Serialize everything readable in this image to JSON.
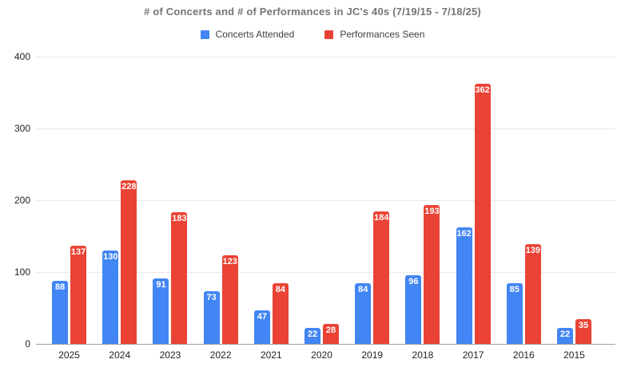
{
  "title": "# of Concerts and # of Performances in JC's 40s (7/19/15 - 7/18/25)",
  "colors": {
    "series_blue": "#4285F4",
    "series_red": "#EA4335",
    "title_text": "#757575",
    "legend_text": "#3c4043",
    "axis_text": "#222222",
    "gridline": "#e8e8e8",
    "axis_line": "#9e9e9e",
    "bar_label_text": "#ffffff"
  },
  "chart_data": {
    "type": "bar",
    "title": "# of Concerts and # of Performances in JC's 40s (7/19/15 - 7/18/25)",
    "categories": [
      "2025",
      "2024",
      "2023",
      "2022",
      "2021",
      "2020",
      "2019",
      "2018",
      "2017",
      "2016",
      "2015"
    ],
    "series": [
      {
        "name": "Concerts Attended",
        "color": "#4285F4",
        "values": [
          88,
          130,
          91,
          73,
          47,
          22,
          84,
          96,
          162,
          85,
          22
        ]
      },
      {
        "name": "Performances Seen",
        "color": "#EA4335",
        "values": [
          137,
          228,
          183,
          123,
          84,
          28,
          184,
          193,
          362,
          139,
          35
        ]
      }
    ],
    "xlabel": "",
    "ylabel": "",
    "ylim": [
      0,
      400
    ],
    "yticks": [
      0,
      100,
      200,
      300,
      400
    ],
    "grid": true,
    "legend_position": "top",
    "data_labels": "inside-end"
  }
}
